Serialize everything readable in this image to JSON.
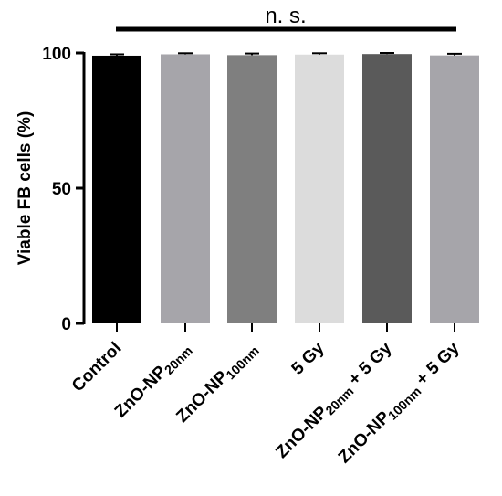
{
  "chart_data": {
    "type": "bar",
    "ylabel": "Viable FB cells (%)",
    "ylim": [
      0,
      100
    ],
    "yticks": [
      "0",
      "50",
      "100"
    ],
    "significance": "n. s.",
    "categories": [
      {
        "main": "Control",
        "sub": "",
        "suffix": ""
      },
      {
        "main": "ZnO-NP",
        "sub": "20nm",
        "suffix": ""
      },
      {
        "main": "ZnO-NP",
        "sub": "100nm",
        "suffix": ""
      },
      {
        "main": "5 Gy",
        "sub": "",
        "suffix": ""
      },
      {
        "main": "ZnO-NP",
        "sub": "20nm",
        "suffix": " + 5 Gy"
      },
      {
        "main": "ZnO-NP",
        "sub": "100nm",
        "suffix": " + 5 Gy"
      }
    ],
    "values": [
      99.0,
      99.5,
      99.2,
      99.4,
      99.6,
      99.1
    ],
    "errors": [
      0.5,
      0.4,
      0.6,
      0.5,
      0.4,
      0.6
    ],
    "colors": [
      "#000000",
      "#a6a5aa",
      "#7f7f7f",
      "#dcdcdc",
      "#5a5a5a",
      "#a6a5aa"
    ],
    "grid": false,
    "legend": "none"
  }
}
